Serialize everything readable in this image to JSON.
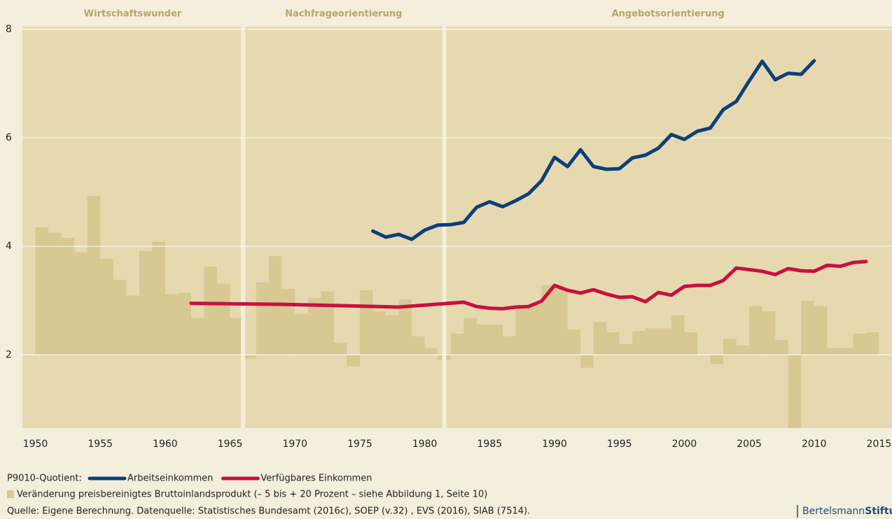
{
  "chart_data": {
    "type": "line",
    "periods": [
      {
        "label": "Wirtschaftswunder",
        "start": 1949,
        "end": 1966
      },
      {
        "label": "Nachfrageorientierung",
        "start": 1966,
        "end": 1981.5
      },
      {
        "label": "Angebotsorientierung",
        "start": 1981.5,
        "end": 2016
      }
    ],
    "xlim": [
      1949,
      2016
    ],
    "xticks": [
      1950,
      1955,
      1960,
      1965,
      1970,
      1975,
      1980,
      1985,
      1990,
      1995,
      2000,
      2005,
      2010,
      2015
    ],
    "ylim": [
      0.65,
      8.05
    ],
    "yticks": [
      2,
      4,
      6,
      8
    ],
    "y2lim": [
      -5.6,
      25
    ],
    "grid": true,
    "legend_prefix": "P9010-Quotient:",
    "source": "Quelle: Eigene Berechnung. Datenquelle: Statistisches Bundesamt (2016c), SOEP (v.32) , EVS (2016), SIAB (7514).",
    "series": [
      {
        "name": "Veränderung preisbereinigtes Bruttoinlandsprodukt (– 5 bis + 20 Prozent – siehe Abbildung 1, Seite 10)",
        "type": "bar",
        "axis": "y2",
        "color": "#d8c892",
        "x": [
          1951,
          1952,
          1953,
          1954,
          1955,
          1956,
          1957,
          1958,
          1959,
          1960,
          1961,
          1962,
          1963,
          1964,
          1965,
          1966,
          1967,
          1968,
          1969,
          1970,
          1971,
          1972,
          1973,
          1974,
          1975,
          1976,
          1977,
          1978,
          1979,
          1980,
          1981,
          1982,
          1983,
          1984,
          1985,
          1986,
          1987,
          1988,
          1989,
          1990,
          1991,
          1992,
          1993,
          1994,
          1995,
          1996,
          1997,
          1998,
          1999,
          2000,
          2001,
          2002,
          2003,
          2004,
          2005,
          2006,
          2007,
          2008,
          2009,
          2010,
          2011,
          2012,
          2013,
          2014,
          2015
        ],
        "values": [
          9.7,
          9.3,
          8.9,
          7.8,
          12.1,
          7.3,
          5.7,
          4.5,
          7.9,
          8.6,
          4.6,
          4.7,
          2.8,
          6.7,
          5.4,
          2.8,
          -0.3,
          5.5,
          7.5,
          5.0,
          3.1,
          4.3,
          4.8,
          0.9,
          -0.9,
          4.9,
          3.3,
          3.0,
          4.2,
          1.4,
          0.5,
          -0.4,
          1.6,
          2.8,
          2.3,
          2.3,
          1.4,
          3.7,
          3.9,
          5.3,
          5.1,
          1.9,
          -1.0,
          2.5,
          1.7,
          0.8,
          1.8,
          2.0,
          2.0,
          3.0,
          1.7,
          0.0,
          -0.7,
          1.2,
          0.7,
          3.7,
          3.3,
          1.1,
          -5.6,
          4.1,
          3.7,
          0.5,
          0.5,
          1.6,
          1.7
        ]
      },
      {
        "name": "Arbeitseinkommen",
        "type": "line",
        "color": "#0d3f7a",
        "x": [
          1976,
          1977,
          1978,
          1979,
          1980,
          1981,
          1982,
          1983,
          1984,
          1985,
          1986,
          1987,
          1988,
          1989,
          1990,
          1991,
          1992,
          1993,
          1994,
          1995,
          1996,
          1997,
          1998,
          1999,
          2000,
          2001,
          2002,
          2003,
          2004,
          2005,
          2006,
          2007,
          2008,
          2009,
          2010
        ],
        "values": [
          4.28,
          4.17,
          4.22,
          4.13,
          4.3,
          4.39,
          4.4,
          4.44,
          4.72,
          4.82,
          4.73,
          4.84,
          4.97,
          5.21,
          5.64,
          5.47,
          5.78,
          5.47,
          5.42,
          5.43,
          5.63,
          5.68,
          5.81,
          6.06,
          5.97,
          6.12,
          6.18,
          6.52,
          6.67,
          7.05,
          7.41,
          7.07,
          7.19,
          7.17,
          7.42
        ]
      },
      {
        "name": "Verfügbares Einkommen",
        "type": "line",
        "color": "#c8103e",
        "x": [
          1962,
          1969,
          1973,
          1978,
          1983,
          1984,
          1985,
          1986,
          1987,
          1988,
          1989,
          1990,
          1991,
          1992,
          1993,
          1994,
          1995,
          1996,
          1997,
          1998,
          1999,
          2000,
          2001,
          2002,
          2003,
          2004,
          2005,
          2006,
          2007,
          2008,
          2009,
          2010,
          2011,
          2012,
          2013,
          2014
        ],
        "values": [
          2.95,
          2.93,
          2.91,
          2.88,
          2.97,
          2.89,
          2.86,
          2.85,
          2.88,
          2.89,
          2.99,
          3.28,
          3.19,
          3.14,
          3.2,
          3.12,
          3.06,
          3.07,
          2.98,
          3.15,
          3.1,
          3.26,
          3.28,
          3.28,
          3.37,
          3.6,
          3.57,
          3.54,
          3.48,
          3.59,
          3.55,
          3.54,
          3.65,
          3.63,
          3.7,
          3.72
        ]
      }
    ]
  },
  "brand": {
    "name": "Bertelsmann",
    "bold": "Stiftung"
  }
}
